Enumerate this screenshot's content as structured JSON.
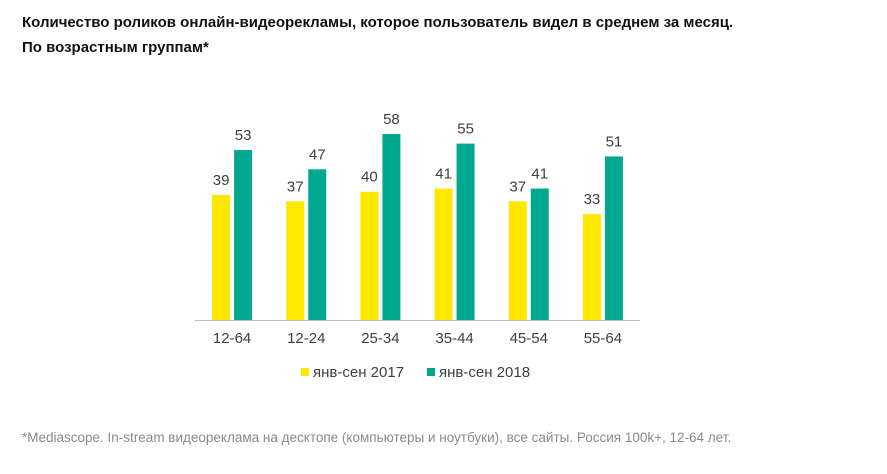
{
  "title_line1": "Количество роликов онлайн-видеорекламы, которое пользователь видел в среднем за месяц.",
  "title_line2": "По возрастным  группам*",
  "footnote": "*Mediascope. In-stream видеореклама на десктопе (компьютеры и ноутбуки), все сайты. Россия 100k+, 12-64 лет.",
  "colors": {
    "series_2017": "#FFE800",
    "series_2018": "#00A88F",
    "axis": "#BFBFBF",
    "label": "#404040"
  },
  "chart_data": {
    "type": "bar",
    "title": "Количество роликов онлайн-видеорекламы, которое пользователь видел в среднем за месяц. По возрастным  группам*",
    "categories": [
      "12-64",
      "12-24",
      "25-34",
      "35-44",
      "45-54",
      "55-64"
    ],
    "series": [
      {
        "name": "янв-сен 2017",
        "values": [
          39,
          37,
          40,
          41,
          37,
          33
        ]
      },
      {
        "name": "янв-сен 2018",
        "values": [
          53,
          47,
          58,
          55,
          41,
          51
        ]
      }
    ],
    "xlabel": "",
    "ylabel": "",
    "ylim": [
      0,
      58
    ],
    "grid": false,
    "legend": "bottom"
  }
}
